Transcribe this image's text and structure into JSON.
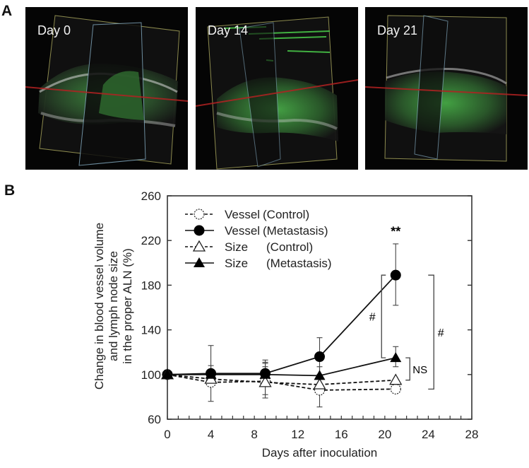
{
  "panelA": {
    "label": "A",
    "images": [
      {
        "label": "Day 0"
      },
      {
        "label": "Day 14"
      },
      {
        "label": "Day 21"
      }
    ]
  },
  "panelB": {
    "label": "B"
  },
  "chart_data": {
    "type": "line",
    "title": "",
    "xlabel": "Days after inoculation",
    "ylabel_lines": [
      "Change in blood vessel volume",
      "and lymph node size",
      "in the proper ALN (%)"
    ],
    "ylabel": "Change in blood vessel volume and lymph node size in the proper ALN (%)",
    "xlim": [
      0,
      28
    ],
    "ylim": [
      60,
      260
    ],
    "xticks": [
      0,
      4,
      8,
      12,
      16,
      20,
      24,
      28
    ],
    "yticks": [
      60,
      100,
      140,
      180,
      220,
      260
    ],
    "x_minor_step": 1,
    "grid": false,
    "legend_position": "upper-left",
    "x": [
      0,
      4,
      9,
      14,
      21
    ],
    "series": [
      {
        "name": "Vessel (Control)",
        "legend_name": "Vessel",
        "legend_group": "(Control)",
        "marker": "open-circle",
        "line": "dashed",
        "values": [
          100,
          93,
          94,
          86,
          87
        ],
        "err_upper": [
          0,
          108,
          107,
          96,
          0
        ],
        "err_lower": [
          0,
          76,
          82,
          71,
          0
        ]
      },
      {
        "name": "Vessel (Metastasis)",
        "legend_name": "Vessel",
        "legend_group": "(Metastasis)",
        "marker": "filled-circle",
        "line": "solid",
        "values": [
          100,
          101,
          101,
          116,
          189
        ],
        "err_upper": [
          0,
          126,
          113,
          133,
          217
        ],
        "err_lower": [
          0,
          0,
          0,
          100,
          162
        ]
      },
      {
        "name": "Size (Control)",
        "legend_name": "Size",
        "legend_group": "(Control)",
        "marker": "open-triangle",
        "line": "dashed",
        "values": [
          100,
          96,
          93,
          91,
          95
        ],
        "err_upper": [
          0,
          0,
          111,
          0,
          0
        ],
        "err_lower": [
          0,
          0,
          79,
          0,
          0
        ]
      },
      {
        "name": "Size (Metastasis)",
        "legend_name": "Size",
        "legend_group": "(Metastasis)",
        "marker": "filled-triangle",
        "line": "solid",
        "values": [
          100,
          100,
          100,
          99,
          115
        ],
        "err_upper": [
          0,
          0,
          110,
          107,
          125
        ],
        "err_lower": [
          0,
          0,
          0,
          0,
          107
        ]
      }
    ],
    "annotations": [
      {
        "text": "**",
        "x": 21,
        "y": 228,
        "note": "above Vessel (Metastasis) day 21"
      },
      {
        "text": "#",
        "bracket": "Vessel (Metastasis) vs Size (Metastasis) at day 21",
        "y_range": [
          115,
          189
        ]
      },
      {
        "text": "NS",
        "bracket": "Size (Metastasis) vs Size (Control) at day 21",
        "y_range": [
          95,
          115
        ]
      },
      {
        "text": "#",
        "bracket": "Vessel (Metastasis) vs Vessel (Control) at day 21",
        "y_range": [
          87,
          189
        ]
      }
    ]
  }
}
